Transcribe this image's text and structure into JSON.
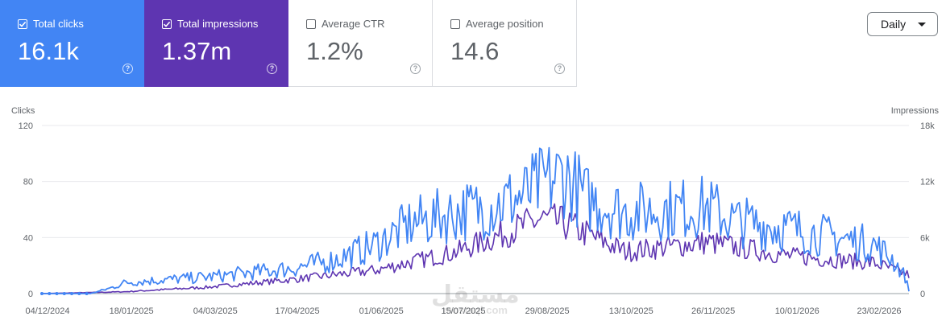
{
  "cards": [
    {
      "label": "Total clicks",
      "value": "16.1k",
      "checked": true
    },
    {
      "label": "Total impressions",
      "value": "1.37m",
      "checked": true
    },
    {
      "label": "Average CTR",
      "value": "1.2%",
      "checked": false
    },
    {
      "label": "Average position",
      "value": "14.6",
      "checked": false
    }
  ],
  "help_glyph": "?",
  "granularity": {
    "label": "Daily"
  },
  "watermark": {
    "arabic": "مستقل",
    "latin": "mostaql.com"
  },
  "colors": {
    "clicks": "#4285f4",
    "impressions": "#5e35b1",
    "grid": "#e8eaed",
    "axis_text": "#5f6368"
  },
  "chart_data": {
    "type": "line",
    "left_axis": {
      "title": "Clicks",
      "ticks": [
        "0",
        "40",
        "80",
        "120"
      ],
      "range": [
        0,
        120
      ]
    },
    "right_axis": {
      "title": "Impressions",
      "ticks": [
        "0",
        "6k",
        "12k",
        "18k"
      ],
      "range": [
        0,
        18000
      ]
    },
    "x_tick_labels": [
      "04/12/2024",
      "18/01/2025",
      "04/03/2025",
      "17/04/2025",
      "01/06/2025",
      "15/07/2025",
      "29/08/2025",
      "13/10/2025",
      "26/11/2025",
      "10/01/2026",
      "23/02/2026"
    ],
    "x_range": [
      "04/12/2024",
      "14/03/2026"
    ],
    "grid": true,
    "series": [
      {
        "name": "Clicks",
        "axis": "left",
        "color": "#4285f4",
        "anchors": [
          [
            "04/12/2024",
            0
          ],
          [
            "30/12/2024",
            0
          ],
          [
            "10/01/2025",
            4
          ],
          [
            "18/01/2025",
            8
          ],
          [
            "04/03/2025",
            12
          ],
          [
            "17/04/2025",
            18
          ],
          [
            "10/05/2025",
            24
          ],
          [
            "01/06/2025",
            35
          ],
          [
            "20/06/2025",
            50
          ],
          [
            "15/07/2025",
            58
          ],
          [
            "01/08/2025",
            62
          ],
          [
            "20/08/2025",
            70
          ],
          [
            "29/08/2025",
            78
          ],
          [
            "10/09/2025",
            85
          ],
          [
            "22/09/2025",
            68
          ],
          [
            "13/10/2025",
            58
          ],
          [
            "26/11/2025",
            62
          ],
          [
            "10/12/2025",
            52
          ],
          [
            "10/01/2026",
            46
          ],
          [
            "23/02/2026",
            35
          ],
          [
            "05/03/2026",
            25
          ],
          [
            "12/03/2026",
            12
          ],
          [
            "14/03/2026",
            2
          ]
        ]
      },
      {
        "name": "Impressions",
        "axis": "right",
        "color": "#5e35b1",
        "anchors": [
          [
            "04/12/2024",
            0
          ],
          [
            "18/01/2025",
            200
          ],
          [
            "04/03/2025",
            700
          ],
          [
            "17/04/2025",
            1500
          ],
          [
            "01/06/2025",
            2500
          ],
          [
            "15/07/2025",
            4500
          ],
          [
            "29/08/2025",
            8000
          ],
          [
            "10/09/2025",
            7500
          ],
          [
            "13/10/2025",
            4500
          ],
          [
            "26/11/2025",
            5500
          ],
          [
            "10/01/2026",
            4000
          ],
          [
            "23/02/2026",
            3300
          ],
          [
            "14/03/2026",
            2000
          ]
        ]
      }
    ]
  }
}
